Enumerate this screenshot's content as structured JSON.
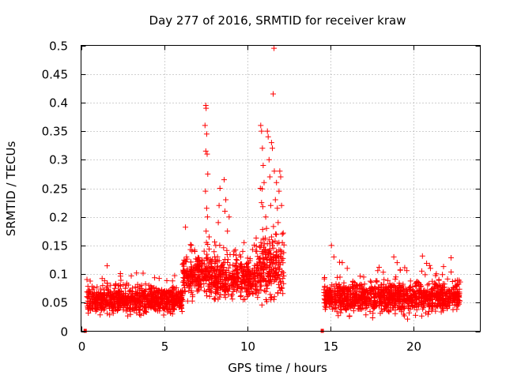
{
  "chart_data": {
    "type": "scatter",
    "title": "Day 277 of 2016, SRMTID for receiver kraw",
    "xlabel": "GPS time / hours",
    "ylabel": "SRMTID / TECUs",
    "xlim": [
      0,
      24
    ],
    "ylim": [
      0,
      0.5
    ],
    "xticks": [
      "0",
      "5",
      "10",
      "15",
      "20"
    ],
    "yticks": [
      "0",
      "0.05",
      "0.1",
      "0.15",
      "0.2",
      "0.25",
      "0.3",
      "0.35",
      "0.4",
      "0.45",
      "0.5"
    ],
    "grid": true,
    "marker": "+",
    "color": "#ff0000",
    "segments": [
      {
        "x_start": 0.35,
        "x_end": 6.1,
        "baseline": 0.055,
        "spread": 0.018
      },
      {
        "x_start": 6.1,
        "x_end": 8.0,
        "baseline": 0.1,
        "spread": 0.03
      },
      {
        "x_start": 8.0,
        "x_end": 10.5,
        "baseline": 0.09,
        "spread": 0.025
      },
      {
        "x_start": 10.5,
        "x_end": 12.2,
        "baseline": 0.11,
        "spread": 0.04
      },
      {
        "x_start": 14.6,
        "x_end": 22.8,
        "baseline": 0.06,
        "spread": 0.02
      }
    ],
    "spikes": [
      {
        "x": 7.5,
        "y": 0.395
      },
      {
        "x": 7.52,
        "y": 0.39
      },
      {
        "x": 7.45,
        "y": 0.36
      },
      {
        "x": 7.55,
        "y": 0.345
      },
      {
        "x": 7.5,
        "y": 0.315
      },
      {
        "x": 7.58,
        "y": 0.31
      },
      {
        "x": 7.62,
        "y": 0.275
      },
      {
        "x": 7.48,
        "y": 0.245
      },
      {
        "x": 7.55,
        "y": 0.215
      },
      {
        "x": 7.6,
        "y": 0.2
      },
      {
        "x": 7.52,
        "y": 0.175
      },
      {
        "x": 7.7,
        "y": 0.165
      },
      {
        "x": 8.1,
        "y": 0.15
      },
      {
        "x": 8.25,
        "y": 0.19
      },
      {
        "x": 8.3,
        "y": 0.22
      },
      {
        "x": 8.35,
        "y": 0.25
      },
      {
        "x": 8.6,
        "y": 0.265
      },
      {
        "x": 8.65,
        "y": 0.21
      },
      {
        "x": 8.7,
        "y": 0.23
      },
      {
        "x": 8.8,
        "y": 0.175
      },
      {
        "x": 8.9,
        "y": 0.2
      },
      {
        "x": 9.2,
        "y": 0.14
      },
      {
        "x": 9.6,
        "y": 0.13
      },
      {
        "x": 9.8,
        "y": 0.155
      },
      {
        "x": 10.8,
        "y": 0.36
      },
      {
        "x": 10.85,
        "y": 0.35
      },
      {
        "x": 10.9,
        "y": 0.32
      },
      {
        "x": 10.95,
        "y": 0.29
      },
      {
        "x": 10.78,
        "y": 0.25
      },
      {
        "x": 10.85,
        "y": 0.225
      },
      {
        "x": 11.0,
        "y": 0.26
      },
      {
        "x": 11.2,
        "y": 0.35
      },
      {
        "x": 11.25,
        "y": 0.34
      },
      {
        "x": 11.3,
        "y": 0.3
      },
      {
        "x": 11.35,
        "y": 0.27
      },
      {
        "x": 11.45,
        "y": 0.33
      },
      {
        "x": 11.5,
        "y": 0.32
      },
      {
        "x": 11.55,
        "y": 0.415
      },
      {
        "x": 11.6,
        "y": 0.495
      },
      {
        "x": 11.62,
        "y": 0.28
      },
      {
        "x": 11.68,
        "y": 0.23
      },
      {
        "x": 11.75,
        "y": 0.26
      },
      {
        "x": 11.8,
        "y": 0.215
      },
      {
        "x": 11.85,
        "y": 0.19
      },
      {
        "x": 11.9,
        "y": 0.245
      },
      {
        "x": 11.95,
        "y": 0.28
      },
      {
        "x": 12.0,
        "y": 0.27
      },
      {
        "x": 12.05,
        "y": 0.22
      },
      {
        "x": 11.4,
        "y": 0.22
      },
      {
        "x": 11.1,
        "y": 0.2
      },
      {
        "x": 11.15,
        "y": 0.18
      },
      {
        "x": 11.7,
        "y": 0.17
      },
      {
        "x": 12.1,
        "y": 0.17
      },
      {
        "x": 12.1,
        "y": 0.155
      },
      {
        "x": 11.3,
        "y": 0.16
      },
      {
        "x": 11.5,
        "y": 0.15
      },
      {
        "x": 15.05,
        "y": 0.15
      },
      {
        "x": 15.2,
        "y": 0.13
      },
      {
        "x": 15.7,
        "y": 0.12
      },
      {
        "x": 16.0,
        "y": 0.11
      },
      {
        "x": 18.8,
        "y": 0.13
      },
      {
        "x": 19.0,
        "y": 0.12
      },
      {
        "x": 20.95,
        "y": 0.115
      },
      {
        "x": 21.0,
        "y": 0.11
      }
    ],
    "edge_marks": [
      {
        "x": 0.25,
        "y": 0.0
      },
      {
        "x": 14.5,
        "y": 0.0
      }
    ]
  }
}
